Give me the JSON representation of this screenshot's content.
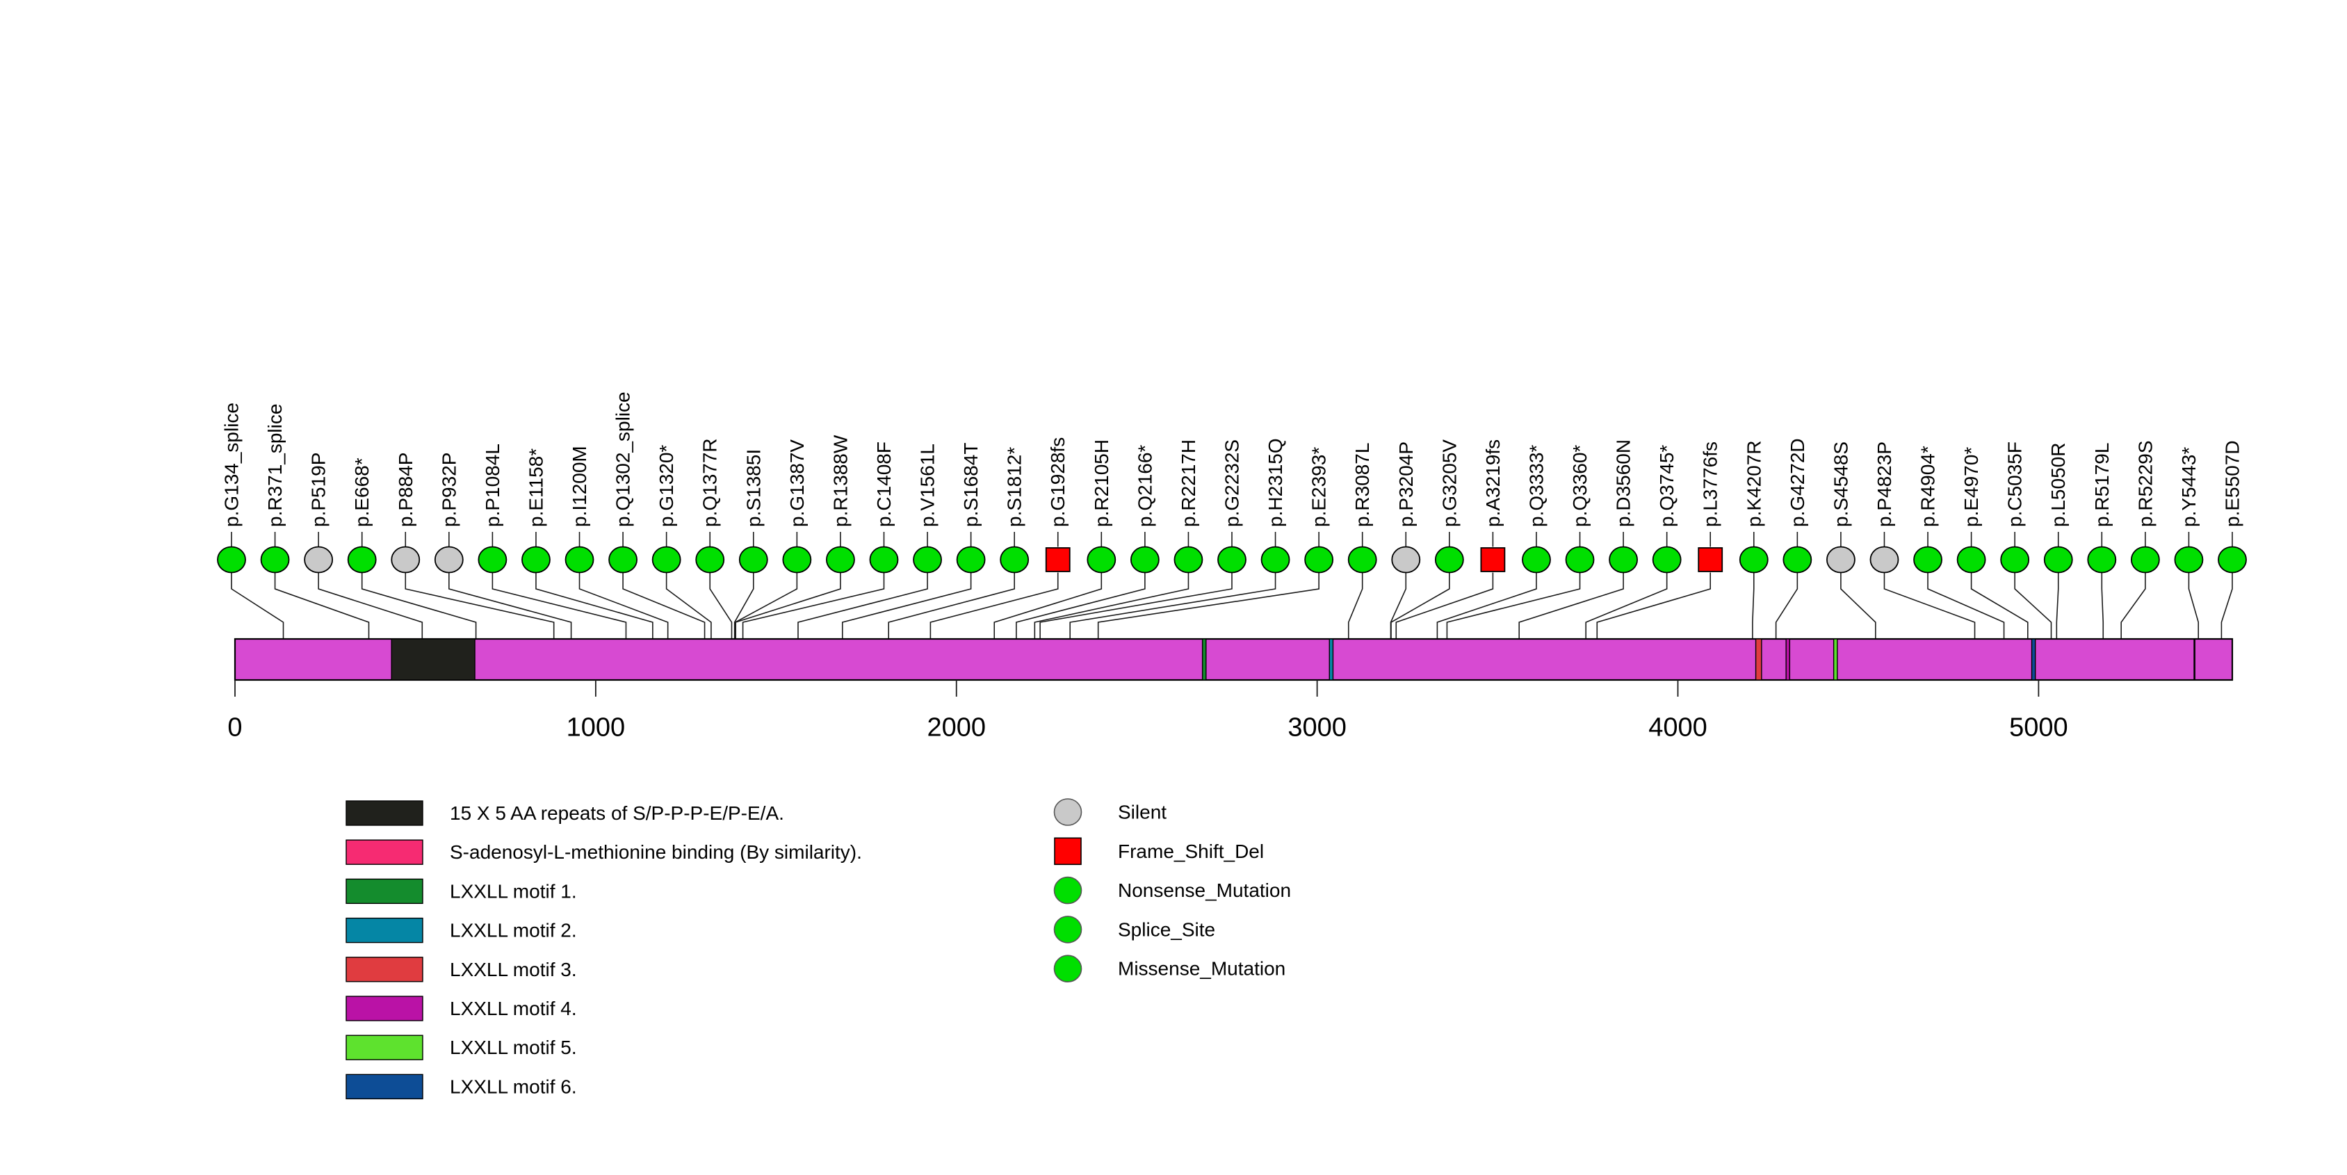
{
  "chart_data": {
    "type": "lollipop",
    "title": "",
    "protein_length": 5537,
    "axis_ticks": [
      0,
      1000,
      2000,
      3000,
      4000,
      5000
    ],
    "backbone_color": "#D74AD2",
    "marker_colors": {
      "Silent": "#C9C9C9",
      "Frame_Shift_Del": "#FF0000",
      "Nonsense_Mutation": "#00DF00",
      "Splice_Site": "#00DF00",
      "Missense_Mutation": "#00DF00"
    },
    "marker_shapes": {
      "Silent": "circle",
      "Frame_Shift_Del": "square",
      "Nonsense_Mutation": "circle",
      "Splice_Site": "circle",
      "Missense_Mutation": "circle"
    },
    "mutations": [
      {
        "label": "p.G134_splice",
        "pos": 134,
        "type": "Splice_Site"
      },
      {
        "label": "p.R371_splice",
        "pos": 371,
        "type": "Splice_Site"
      },
      {
        "label": "p.P519P",
        "pos": 519,
        "type": "Silent"
      },
      {
        "label": "p.E668*",
        "pos": 668,
        "type": "Nonsense_Mutation"
      },
      {
        "label": "p.P884P",
        "pos": 884,
        "type": "Silent"
      },
      {
        "label": "p.P932P",
        "pos": 932,
        "type": "Silent"
      },
      {
        "label": "p.P1084L",
        "pos": 1084,
        "type": "Missense_Mutation"
      },
      {
        "label": "p.E1158*",
        "pos": 1158,
        "type": "Nonsense_Mutation"
      },
      {
        "label": "p.I1200M",
        "pos": 1200,
        "type": "Missense_Mutation"
      },
      {
        "label": "p.Q1302_splice",
        "pos": 1302,
        "type": "Splice_Site"
      },
      {
        "label": "p.G1320*",
        "pos": 1320,
        "type": "Nonsense_Mutation"
      },
      {
        "label": "p.Q1377R",
        "pos": 1377,
        "type": "Missense_Mutation"
      },
      {
        "label": "p.S1385I",
        "pos": 1385,
        "type": "Missense_Mutation"
      },
      {
        "label": "p.G1387V",
        "pos": 1387,
        "type": "Missense_Mutation"
      },
      {
        "label": "p.R1388W",
        "pos": 1388,
        "type": "Missense_Mutation"
      },
      {
        "label": "p.C1408F",
        "pos": 1408,
        "type": "Missense_Mutation"
      },
      {
        "label": "p.V1561L",
        "pos": 1561,
        "type": "Missense_Mutation"
      },
      {
        "label": "p.S1684T",
        "pos": 1684,
        "type": "Missense_Mutation"
      },
      {
        "label": "p.S1812*",
        "pos": 1812,
        "type": "Nonsense_Mutation"
      },
      {
        "label": "p.G1928fs",
        "pos": 1928,
        "type": "Frame_Shift_Del"
      },
      {
        "label": "p.R2105H",
        "pos": 2105,
        "type": "Missense_Mutation"
      },
      {
        "label": "p.Q2166*",
        "pos": 2166,
        "type": "Nonsense_Mutation"
      },
      {
        "label": "p.R2217H",
        "pos": 2217,
        "type": "Missense_Mutation"
      },
      {
        "label": "p.G2232S",
        "pos": 2232,
        "type": "Missense_Mutation"
      },
      {
        "label": "p.H2315Q",
        "pos": 2315,
        "type": "Missense_Mutation"
      },
      {
        "label": "p.E2393*",
        "pos": 2393,
        "type": "Nonsense_Mutation"
      },
      {
        "label": "p.R3087L",
        "pos": 3087,
        "type": "Missense_Mutation"
      },
      {
        "label": "p.P3204P",
        "pos": 3204,
        "type": "Silent"
      },
      {
        "label": "p.G3205V",
        "pos": 3205,
        "type": "Missense_Mutation"
      },
      {
        "label": "p.A3219fs",
        "pos": 3219,
        "type": "Frame_Shift_Del"
      },
      {
        "label": "p.Q3333*",
        "pos": 3333,
        "type": "Nonsense_Mutation"
      },
      {
        "label": "p.Q3360*",
        "pos": 3360,
        "type": "Nonsense_Mutation"
      },
      {
        "label": "p.D3560N",
        "pos": 3560,
        "type": "Missense_Mutation"
      },
      {
        "label": "p.Q3745*",
        "pos": 3745,
        "type": "Nonsense_Mutation"
      },
      {
        "label": "p.L3776fs",
        "pos": 3776,
        "type": "Frame_Shift_Del"
      },
      {
        "label": "p.K4207R",
        "pos": 4207,
        "type": "Missense_Mutation"
      },
      {
        "label": "p.G4272D",
        "pos": 4272,
        "type": "Missense_Mutation"
      },
      {
        "label": "p.S4548S",
        "pos": 4548,
        "type": "Silent"
      },
      {
        "label": "p.P4823P",
        "pos": 4823,
        "type": "Silent"
      },
      {
        "label": "p.R4904*",
        "pos": 4904,
        "type": "Nonsense_Mutation"
      },
      {
        "label": "p.E4970*",
        "pos": 4970,
        "type": "Nonsense_Mutation"
      },
      {
        "label": "p.C5035F",
        "pos": 5035,
        "type": "Missense_Mutation"
      },
      {
        "label": "p.L5050R",
        "pos": 5050,
        "type": "Missense_Mutation"
      },
      {
        "label": "p.R5179L",
        "pos": 5179,
        "type": "Missense_Mutation"
      },
      {
        "label": "p.R5229S",
        "pos": 5229,
        "type": "Missense_Mutation"
      },
      {
        "label": "p.Y5443*",
        "pos": 5443,
        "type": "Nonsense_Mutation"
      },
      {
        "label": "p.E5507D",
        "pos": 5507,
        "type": "Missense_Mutation"
      }
    ],
    "domains": [
      {
        "label": "15 X 5 AA repeats of S/P-P-P-E/P-E/A.",
        "color": "#20211C",
        "start": 434,
        "end": 665
      },
      {
        "label": "S-adenosyl-L-methionine binding (By similarity).",
        "color": "#F62B72",
        "start": 5431,
        "end": 5433
      },
      {
        "label": "LXXLL motif 1.",
        "color": "#148C2D",
        "start": 2682,
        "end": 2692
      },
      {
        "label": "LXXLL motif 2.",
        "color": "#0586A5",
        "start": 3034,
        "end": 3044
      },
      {
        "label": "LXXLL motif 3.",
        "color": "#E03C40",
        "start": 4216,
        "end": 4232
      },
      {
        "label": "LXXLL motif 4.",
        "color": "#BA12A6",
        "start": 4300,
        "end": 4310
      },
      {
        "label": "LXXLL motif 5.",
        "color": "#5EE22E",
        "start": 4432,
        "end": 4442
      },
      {
        "label": "LXXLL motif 6.",
        "color": "#0D4D96",
        "start": 4981,
        "end": 4991
      }
    ],
    "mutation_legend": [
      {
        "label": "Silent",
        "shape": "circle",
        "color": "#C9C9C9"
      },
      {
        "label": "Frame_Shift_Del",
        "shape": "square",
        "color": "#FF0000"
      },
      {
        "label": "Nonsense_Mutation",
        "shape": "circle",
        "color": "#00DF00"
      },
      {
        "label": "Splice_Site",
        "shape": "circle",
        "color": "#00DF00"
      },
      {
        "label": "Missense_Mutation",
        "shape": "circle",
        "color": "#00DF00"
      }
    ]
  }
}
